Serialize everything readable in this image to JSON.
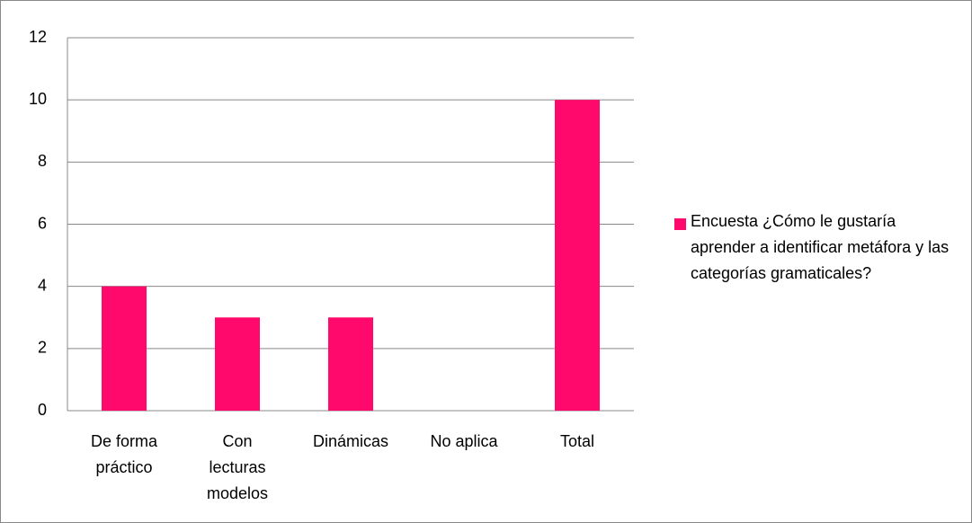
{
  "chart_data": {
    "type": "bar",
    "categories": [
      "De forma práctico",
      "Con lecturas modelos",
      "Dinámicas",
      "No aplica",
      "Total"
    ],
    "series": [
      {
        "name": "Encuesta ¿Cómo le gustaría aprender a  identificar metáfora y las categorías gramaticales?",
        "color": "#ff0a6c",
        "values": [
          4,
          3,
          3,
          0,
          10
        ]
      }
    ],
    "ylim": [
      0,
      12
    ],
    "yticks": [
      0,
      2,
      4,
      6,
      8,
      10,
      12
    ],
    "grid": true,
    "legend": "right"
  }
}
